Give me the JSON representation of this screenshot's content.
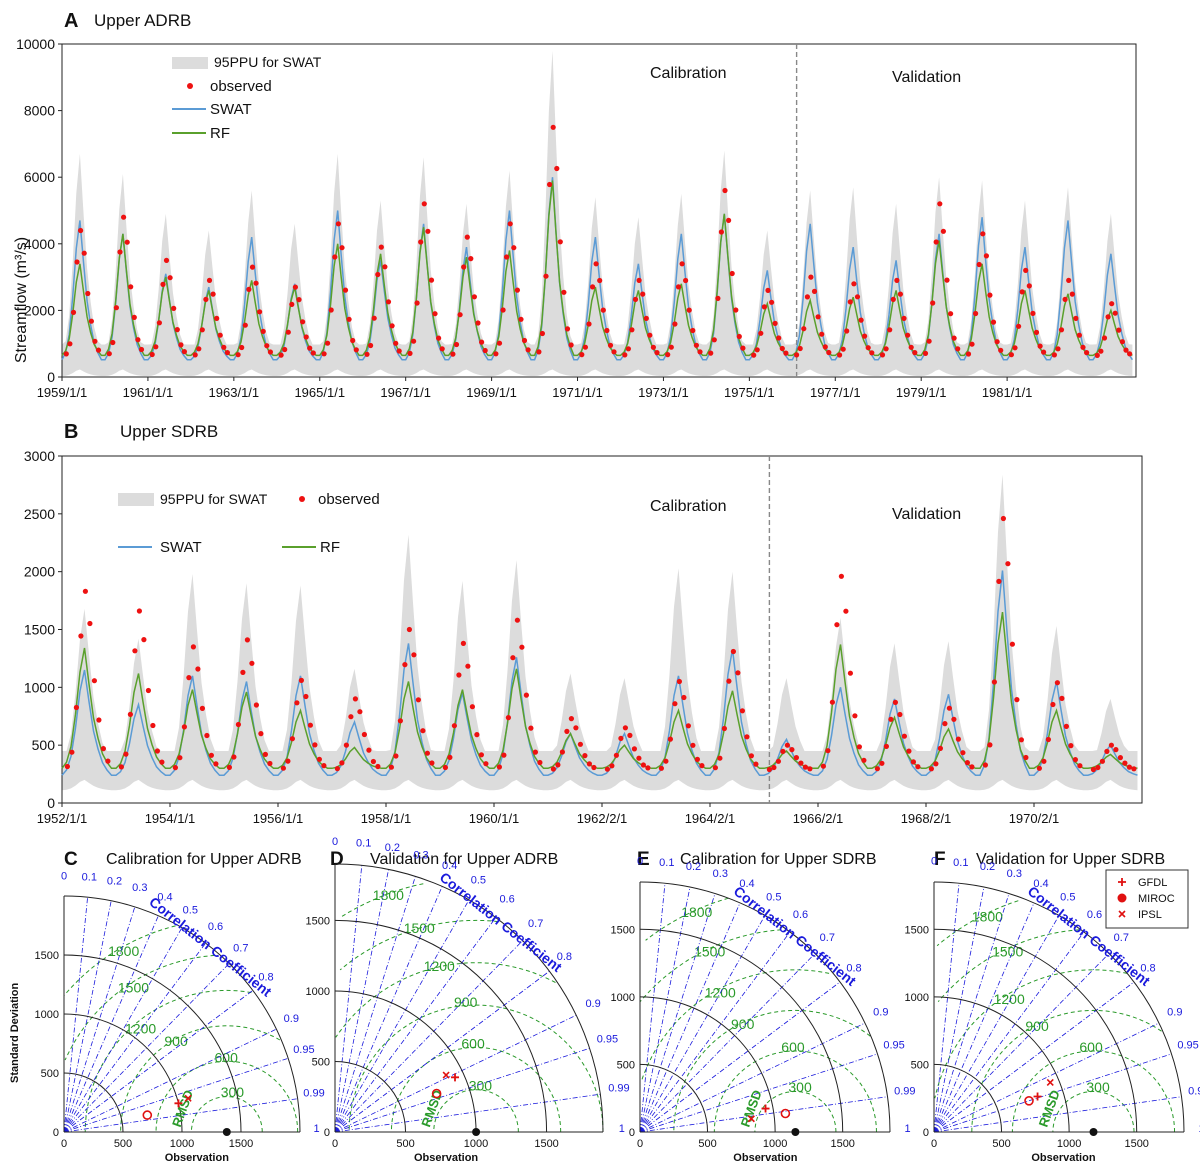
{
  "y_axis_label": "Streamflow (m³/s)",
  "chart_data": [
    {
      "id": "A",
      "type": "line",
      "panel_letter": "A",
      "title": "Upper ADRB",
      "ylim": [
        0,
        10000
      ],
      "yticks": [
        0,
        2000,
        4000,
        6000,
        8000,
        10000
      ],
      "x_tick_labels": [
        "1959/1/1",
        "1961/1/1",
        "1963/1/1",
        "1965/1/1",
        "1967/1/1",
        "1969/1/1",
        "1971/1/1",
        "1973/1/1",
        "1975/1/1",
        "1977/1/1",
        "1979/1/1",
        "1981/1/1"
      ],
      "start_year": 1959,
      "end_year": 1983,
      "split_year": 1976,
      "period_labels": {
        "calibration": "Calibration",
        "validation": "Validation"
      },
      "legend": {
        "band": "95PPU for SWAT",
        "observed": "observed",
        "swat": "SWAT",
        "rf": "RF"
      },
      "annual_peaks": [
        {
          "year": 1959,
          "observed": 4400,
          "swat": 4700,
          "rf": 3400,
          "ppu": 6700
        },
        {
          "year": 1960,
          "observed": 4800,
          "swat": 4300,
          "rf": 4300,
          "ppu": 6100
        },
        {
          "year": 1961,
          "observed": 3500,
          "swat": 3100,
          "rf": 3000,
          "ppu": 4900
        },
        {
          "year": 1962,
          "observed": 2900,
          "swat": 2700,
          "rf": 2600,
          "ppu": 4400
        },
        {
          "year": 1963,
          "observed": 3300,
          "swat": 4200,
          "rf": 2900,
          "ppu": 5600
        },
        {
          "year": 1964,
          "observed": 2700,
          "swat": 2800,
          "rf": 2700,
          "ppu": 4600
        },
        {
          "year": 1965,
          "observed": 4600,
          "swat": 5000,
          "rf": 4000,
          "ppu": 6700
        },
        {
          "year": 1966,
          "observed": 3900,
          "swat": 3500,
          "rf": 3700,
          "ppu": 5300
        },
        {
          "year": 1967,
          "observed": 5200,
          "swat": 4600,
          "rf": 4500,
          "ppu": 6600
        },
        {
          "year": 1968,
          "observed": 4200,
          "swat": 3900,
          "rf": 3600,
          "ppu": 5200
        },
        {
          "year": 1969,
          "observed": 4600,
          "swat": 5000,
          "rf": 3800,
          "ppu": 6200
        },
        {
          "year": 1970,
          "observed": 7500,
          "swat": 6000,
          "rf": 5900,
          "ppu": 9800
        },
        {
          "year": 1971,
          "observed": 3400,
          "swat": 4200,
          "rf": 2700,
          "ppu": 5400
        },
        {
          "year": 1972,
          "observed": 2900,
          "swat": 3400,
          "rf": 2600,
          "ppu": 4800
        },
        {
          "year": 1973,
          "observed": 3400,
          "swat": 4300,
          "rf": 2800,
          "ppu": 5500
        },
        {
          "year": 1974,
          "observed": 5600,
          "swat": 4900,
          "rf": 4900,
          "ppu": 6800
        },
        {
          "year": 1975,
          "observed": 2600,
          "swat": 3200,
          "rf": 2200,
          "ppu": 4400
        },
        {
          "year": 1976,
          "observed": 3000,
          "swat": 4600,
          "rf": 2300,
          "ppu": 5600
        },
        {
          "year": 1977,
          "observed": 2800,
          "swat": 3900,
          "rf": 2400,
          "ppu": 5700
        },
        {
          "year": 1978,
          "observed": 2900,
          "swat": 3500,
          "rf": 2600,
          "ppu": 5200
        },
        {
          "year": 1979,
          "observed": 5200,
          "swat": 4300,
          "rf": 4100,
          "ppu": 6000
        },
        {
          "year": 1980,
          "observed": 4300,
          "swat": 4800,
          "rf": 3400,
          "ppu": 5900
        },
        {
          "year": 1981,
          "observed": 3200,
          "swat": 3900,
          "rf": 2600,
          "ppu": 5300
        },
        {
          "year": 1982,
          "observed": 2900,
          "swat": 4700,
          "rf": 2500,
          "ppu": 5700
        },
        {
          "year": 1983,
          "observed": 2200,
          "swat": 3700,
          "rf": 2000,
          "ppu": 4900
        }
      ]
    },
    {
      "id": "B",
      "type": "line",
      "panel_letter": "B",
      "title": "Upper SDRB",
      "ylim": [
        0,
        3000
      ],
      "yticks": [
        0,
        500,
        1000,
        1500,
        2000,
        2500,
        3000
      ],
      "x_tick_labels": [
        "1952/1/1",
        "1954/1/1",
        "1956/1/1",
        "1958/1/1",
        "1960/1/1",
        "1962/2/1",
        "1964/2/1",
        "1966/2/1",
        "1968/2/1",
        "1970/2/1"
      ],
      "start_year": 1952,
      "end_year": 1971,
      "split_year": 1965,
      "period_labels": {
        "calibration": "Calibration",
        "validation": "Validation"
      },
      "legend": {
        "band": "95PPU for SWAT",
        "observed": "observed",
        "swat": "SWAT",
        "rf": "RF"
      },
      "annual_peaks": [
        {
          "year": 1952,
          "observed": 1830,
          "swat": 1150,
          "rf": 1340,
          "ppu": 1680
        },
        {
          "year": 1953,
          "observed": 1660,
          "swat": 850,
          "rf": 1120,
          "ppu": 1420
        },
        {
          "year": 1954,
          "observed": 1350,
          "swat": 1100,
          "rf": 980,
          "ppu": 1980
        },
        {
          "year": 1955,
          "observed": 1410,
          "swat": 1050,
          "rf": 960,
          "ppu": 1900
        },
        {
          "year": 1956,
          "observed": 1060,
          "swat": 1100,
          "rf": 800,
          "ppu": 1880
        },
        {
          "year": 1957,
          "observed": 900,
          "swat": 700,
          "rf": 480,
          "ppu": 1160
        },
        {
          "year": 1958,
          "observed": 1500,
          "swat": 1380,
          "rf": 1050,
          "ppu": 2320
        },
        {
          "year": 1959,
          "observed": 1380,
          "swat": 950,
          "rf": 980,
          "ppu": 1920
        },
        {
          "year": 1960,
          "observed": 1580,
          "swat": 1260,
          "rf": 1160,
          "ppu": 2100
        },
        {
          "year": 1961,
          "observed": 730,
          "swat": 600,
          "rf": 600,
          "ppu": 1120
        },
        {
          "year": 1962,
          "observed": 650,
          "swat": 600,
          "rf": 500,
          "ppu": 1080
        },
        {
          "year": 1963,
          "observed": 1050,
          "swat": 1100,
          "rf": 800,
          "ppu": 2030
        },
        {
          "year": 1964,
          "observed": 1310,
          "swat": 1330,
          "rf": 970,
          "ppu": 2000
        },
        {
          "year": 1965,
          "observed": 500,
          "swat": 550,
          "rf": 450,
          "ppu": 1080
        },
        {
          "year": 1966,
          "observed": 1960,
          "swat": 1000,
          "rf": 1370,
          "ppu": 1600
        },
        {
          "year": 1967,
          "observed": 870,
          "swat": 900,
          "rf": 740,
          "ppu": 1380
        },
        {
          "year": 1968,
          "observed": 820,
          "swat": 940,
          "rf": 640,
          "ppu": 1400
        },
        {
          "year": 1969,
          "observed": 2460,
          "swat": 2010,
          "rf": 1650,
          "ppu": 2840
        },
        {
          "year": 1970,
          "observed": 1040,
          "swat": 1050,
          "rf": 800,
          "ppu": 1530
        },
        {
          "year": 1971,
          "observed": 500,
          "swat": 500,
          "rf": 420,
          "ppu": 900
        }
      ]
    },
    {
      "id": "C",
      "type": "scatter",
      "panel_letter": "C",
      "title": "Calibration for Upper ADRB",
      "x_axis_title": "Observation",
      "y_axis_title": "Standard Deviation",
      "axis_ticks": [
        0,
        500,
        1000,
        1500
      ],
      "max_sd": 2000,
      "ref_sd": 1380,
      "rmsd_arcs": [
        300,
        600,
        900,
        1200,
        1500,
        1800
      ],
      "models": [
        {
          "name": "GFDL",
          "sd": 1000,
          "corr": 0.97
        },
        {
          "name": "MIROC",
          "sd": 720,
          "corr": 0.98
        },
        {
          "name": "IPSL",
          "sd": 1090,
          "corr": 0.965
        }
      ]
    },
    {
      "id": "D",
      "type": "scatter",
      "panel_letter": "D",
      "title": "Validation for Upper ADRB",
      "x_axis_title": "Observation",
      "y_axis_title": "",
      "axis_ticks": [
        0,
        500,
        1000,
        1500
      ],
      "max_sd": 1900,
      "ref_sd": 1000,
      "rmsd_arcs": [
        300,
        600,
        900,
        1200,
        1500,
        1800
      ],
      "models": [
        {
          "name": "GFDL",
          "sd": 935,
          "corr": 0.91
        },
        {
          "name": "MIROC",
          "sd": 770,
          "corr": 0.935
        },
        {
          "name": "IPSL",
          "sd": 885,
          "corr": 0.89
        }
      ]
    },
    {
      "id": "E",
      "type": "scatter",
      "panel_letter": "E",
      "title": "Calibration for Upper SDRB",
      "x_axis_title": "Observation",
      "y_axis_title": "",
      "axis_ticks": [
        0,
        500,
        1000,
        1500
      ],
      "max_sd": 1850,
      "ref_sd": 1150,
      "rmsd_arcs": [
        300,
        600,
        900,
        1200,
        1500,
        1800
      ],
      "models": [
        {
          "name": "GFDL",
          "sd": 945,
          "corr": 0.983
        },
        {
          "name": "MIROC",
          "sd": 1085,
          "corr": 0.992
        },
        {
          "name": "IPSL",
          "sd": 830,
          "corr": 0.993
        }
      ]
    },
    {
      "id": "F",
      "type": "scatter",
      "panel_letter": "F",
      "title": "Validation for Upper SDRB",
      "x_axis_title": "Observation",
      "y_axis_title": "",
      "axis_ticks": [
        0,
        500,
        1000,
        1500
      ],
      "max_sd": 1850,
      "ref_sd": 1180,
      "rmsd_arcs": [
        300,
        600,
        900,
        1200,
        1500,
        1800
      ],
      "models": [
        {
          "name": "GFDL",
          "sd": 810,
          "corr": 0.946
        },
        {
          "name": "MIROC",
          "sd": 740,
          "corr": 0.95
        },
        {
          "name": "IPSL",
          "sd": 935,
          "corr": 0.92
        }
      ]
    }
  ],
  "taylor_legend": [
    {
      "name": "GFDL",
      "symbol": "plus"
    },
    {
      "name": "MIROC",
      "symbol": "circle"
    },
    {
      "name": "IPSL",
      "symbol": "cross"
    }
  ],
  "taylor_text": {
    "correlation_title": "Correlation Coefficient",
    "rmsd_label": "RMSD",
    "corr_ticks": [
      "0",
      "0.1",
      "0.2",
      "0.3",
      "0.4",
      "0.5",
      "0.6",
      "0.7",
      "0.8",
      "0.9",
      "0.95",
      "0.99",
      "1"
    ]
  },
  "colors": {
    "band": "#dcdcdc",
    "observed": "#ee1111",
    "swat": "#5b9bd5",
    "rf": "#5aa02c",
    "corr_lines": "#1a1adc",
    "rmsd_arcs": "#2a9a2a",
    "model_marker": "#e01010"
  }
}
